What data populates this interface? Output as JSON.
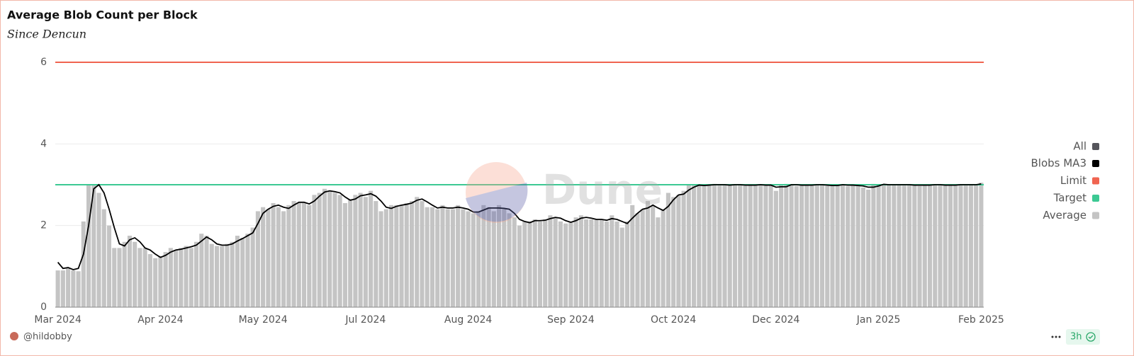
{
  "chart_data": {
    "type": "bar",
    "title": "Average Blob Count per Block",
    "subtitle": "Since Dencun",
    "categories": [
      "Mar 2024",
      null,
      null,
      null,
      null,
      null,
      null,
      null,
      null,
      null,
      null,
      null,
      null,
      null,
      null,
      null,
      null,
      null,
      null,
      null,
      "Apr 2024",
      null,
      null,
      null,
      null,
      null,
      null,
      null,
      null,
      null,
      null,
      null,
      null,
      null,
      null,
      null,
      null,
      null,
      null,
      null,
      "May 2024",
      null,
      null,
      null,
      null,
      null,
      null,
      null,
      null,
      null,
      null,
      null,
      null,
      null,
      null,
      null,
      null,
      null,
      null,
      null,
      "Jul 2024",
      null,
      null,
      null,
      null,
      null,
      null,
      null,
      null,
      null,
      null,
      null,
      null,
      null,
      null,
      null,
      null,
      null,
      null,
      null,
      "Aug 2024",
      null,
      null,
      null,
      null,
      null,
      null,
      null,
      null,
      null,
      null,
      null,
      null,
      null,
      null,
      null,
      null,
      null,
      null,
      null,
      "Sep 2024",
      null,
      null,
      null,
      null,
      null,
      null,
      null,
      null,
      null,
      null,
      null,
      null,
      null,
      null,
      null,
      null,
      null,
      null,
      null,
      "Oct 2024",
      null,
      null,
      null,
      null,
      null,
      null,
      null,
      null,
      null,
      null,
      null,
      null,
      null,
      null,
      null,
      null,
      null,
      null,
      null,
      "Dec 2024",
      null,
      null,
      null,
      null,
      null,
      null,
      null,
      null,
      null,
      null,
      null,
      null,
      null,
      null,
      null,
      null,
      null,
      null,
      null,
      "Jan 2025",
      null,
      null,
      null,
      null,
      null,
      null,
      null,
      null,
      null,
      null,
      null,
      null,
      null,
      null,
      null,
      null,
      null,
      null,
      null,
      "Feb 2025"
    ],
    "series": [
      {
        "name": "Blobs MA3",
        "type": "line",
        "color": "#000000",
        "values": [
          1.1,
          0.95,
          0.97,
          0.92,
          0.95,
          1.3,
          2.0,
          2.9,
          3.0,
          2.8,
          2.4,
          1.95,
          1.55,
          1.5,
          1.65,
          1.7,
          1.6,
          1.45,
          1.4,
          1.3,
          1.22,
          1.27,
          1.35,
          1.4,
          1.42,
          1.45,
          1.48,
          1.52,
          1.62,
          1.72,
          1.65,
          1.55,
          1.52,
          1.52,
          1.55,
          1.62,
          1.68,
          1.75,
          1.82,
          2.05,
          2.3,
          2.4,
          2.47,
          2.5,
          2.45,
          2.42,
          2.5,
          2.57,
          2.57,
          2.53,
          2.6,
          2.72,
          2.82,
          2.85,
          2.83,
          2.8,
          2.7,
          2.62,
          2.65,
          2.73,
          2.75,
          2.78,
          2.72,
          2.6,
          2.45,
          2.42,
          2.47,
          2.5,
          2.52,
          2.55,
          2.62,
          2.65,
          2.58,
          2.5,
          2.43,
          2.45,
          2.43,
          2.43,
          2.45,
          2.43,
          2.4,
          2.33,
          2.33,
          2.38,
          2.43,
          2.43,
          2.43,
          2.42,
          2.4,
          2.3,
          2.15,
          2.1,
          2.07,
          2.12,
          2.12,
          2.13,
          2.17,
          2.2,
          2.18,
          2.12,
          2.08,
          2.12,
          2.18,
          2.2,
          2.18,
          2.15,
          2.15,
          2.13,
          2.17,
          2.15,
          2.1,
          2.05,
          2.18,
          2.3,
          2.4,
          2.43,
          2.5,
          2.43,
          2.37,
          2.47,
          2.63,
          2.75,
          2.77,
          2.87,
          2.94,
          2.99,
          2.98,
          2.99,
          3.0,
          3.0,
          3.0,
          2.99,
          3.0,
          3.0,
          2.99,
          2.99,
          2.99,
          3.0,
          2.99,
          2.99,
          2.94,
          2.95,
          2.95,
          3.0,
          3.0,
          2.99,
          2.99,
          2.99,
          3.0,
          3.0,
          2.99,
          2.98,
          2.98,
          3.0,
          2.99,
          2.99,
          2.98,
          2.97,
          2.94,
          2.94,
          2.97,
          3.01,
          3.0,
          3.0,
          3.0,
          3.0,
          3.0,
          2.99,
          2.99,
          2.99,
          2.99,
          3.0,
          3.0,
          2.99,
          2.99,
          2.99,
          3.0,
          3.0,
          3.0,
          3.0,
          3.02
        ]
      },
      {
        "name": "Limit",
        "type": "hline",
        "color": "#f06450",
        "value": 6
      },
      {
        "name": "Target",
        "type": "hline",
        "color": "#3cc993",
        "value": 3
      },
      {
        "name": "Average",
        "type": "bar",
        "color": "#c4c4c4",
        "values": [
          0.9,
          0.9,
          0.95,
          0.9,
          0.88,
          2.1,
          3.0,
          3.0,
          2.8,
          2.4,
          2.0,
          1.45,
          1.45,
          1.6,
          1.75,
          1.6,
          1.45,
          1.45,
          1.3,
          1.2,
          1.25,
          1.35,
          1.45,
          1.4,
          1.45,
          1.5,
          1.45,
          1.6,
          1.8,
          1.75,
          1.55,
          1.5,
          1.5,
          1.55,
          1.6,
          1.75,
          1.7,
          1.8,
          1.95,
          2.35,
          2.45,
          2.4,
          2.55,
          2.45,
          2.35,
          2.5,
          2.6,
          2.55,
          2.55,
          2.5,
          2.75,
          2.8,
          2.9,
          2.85,
          2.8,
          2.75,
          2.55,
          2.65,
          2.75,
          2.8,
          2.7,
          2.85,
          2.6,
          2.35,
          2.4,
          2.5,
          2.5,
          2.5,
          2.55,
          2.6,
          2.7,
          2.6,
          2.45,
          2.45,
          2.4,
          2.5,
          2.4,
          2.4,
          2.5,
          2.4,
          2.35,
          2.3,
          2.35,
          2.5,
          2.45,
          2.35,
          2.5,
          2.4,
          2.3,
          2.2,
          2.0,
          2.1,
          2.1,
          2.15,
          2.1,
          2.15,
          2.25,
          2.2,
          2.1,
          2.05,
          2.1,
          2.2,
          2.25,
          2.15,
          2.15,
          2.15,
          2.15,
          2.1,
          2.25,
          2.1,
          1.95,
          2.1,
          2.5,
          2.3,
          2.4,
          2.6,
          2.5,
          2.2,
          2.4,
          2.8,
          2.7,
          2.75,
          2.85,
          3.0,
          2.98,
          3.0,
          2.97,
          3.0,
          3.02,
          2.98,
          3.0,
          2.99,
          3.0,
          3.01,
          2.97,
          2.99,
          3.0,
          3.0,
          2.98,
          3.0,
          2.85,
          2.99,
          3.02,
          3.0,
          2.97,
          3.0,
          3.0,
          2.98,
          3.01,
          3.0,
          2.97,
          2.98,
          3.0,
          3.01,
          2.96,
          2.99,
          3.0,
          2.93,
          2.88,
          3.02,
          3.0,
          3.0,
          2.99,
          3.0,
          3.01,
          2.98,
          3.0,
          2.99,
          2.97,
          3.01,
          3.0,
          2.99,
          3.0,
          2.98,
          3.0,
          3.0,
          2.99,
          3.0,
          3.01,
          2.99,
          3.05
        ]
      }
    ],
    "legend_all": {
      "label": "All",
      "color": "#55555c"
    },
    "ylim": [
      0,
      6
    ],
    "yticks": [
      0,
      2,
      4,
      6
    ],
    "grid": true,
    "legend": "right",
    "watermark": "Dune",
    "author": "@hildobby",
    "refresh": "3h"
  }
}
